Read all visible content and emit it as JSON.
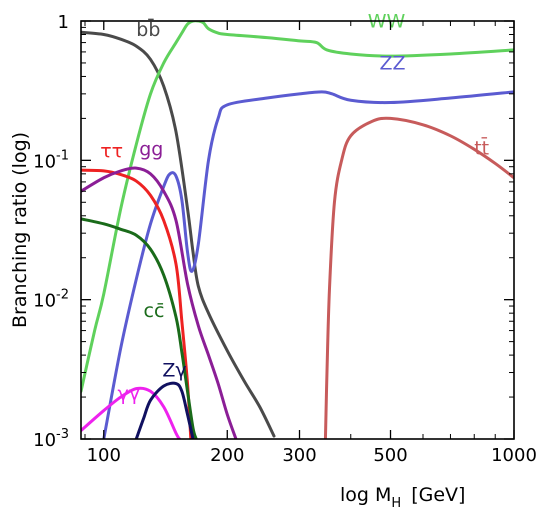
{
  "chart_data": {
    "type": "line",
    "xlabel": "log M",
    "xlabel_sub": "H",
    "xlabel_unit": "[GeV]",
    "ylabel": "Branching ratio  (log)",
    "x_scale": "log",
    "y_scale": "log",
    "xlim": [
      88,
      1000
    ],
    "ylim": [
      0.001,
      1
    ],
    "x_ticks": [
      {
        "value": 100,
        "label": "100"
      },
      {
        "value": 200,
        "label": "200"
      },
      {
        "value": 300,
        "label": "300"
      },
      {
        "value": 500,
        "label": "500"
      },
      {
        "value": 1000,
        "label": "1000"
      }
    ],
    "y_ticks": [
      {
        "value": 1,
        "base": "1",
        "exp": ""
      },
      {
        "value": 0.1,
        "base": "10",
        "exp": "-1"
      },
      {
        "value": 0.01,
        "base": "10",
        "exp": "-2"
      },
      {
        "value": 0.001,
        "base": "10",
        "exp": "-3"
      }
    ],
    "grid": false,
    "legend": "inline labels",
    "series": [
      {
        "name": "bb̄",
        "color": "#4a4a4a",
        "label_at": [
          120,
          0.78
        ],
        "points": [
          [
            88,
            0.83
          ],
          [
            100,
            0.8
          ],
          [
            110,
            0.74
          ],
          [
            120,
            0.66
          ],
          [
            130,
            0.53
          ],
          [
            140,
            0.34
          ],
          [
            150,
            0.16
          ],
          [
            160,
            0.045
          ],
          [
            165,
            0.022
          ],
          [
            170,
            0.0125
          ],
          [
            180,
            0.008
          ],
          [
            200,
            0.0043
          ],
          [
            220,
            0.0026
          ],
          [
            240,
            0.0017
          ],
          [
            260,
            0.00105
          ]
        ]
      },
      {
        "name": "WW",
        "color": "#5fd15c",
        "label_at": [
          440,
          0.9
        ],
        "points": [
          [
            88,
            0.0022
          ],
          [
            95,
            0.006
          ],
          [
            100,
            0.011
          ],
          [
            110,
            0.045
          ],
          [
            120,
            0.13
          ],
          [
            130,
            0.3
          ],
          [
            140,
            0.5
          ],
          [
            150,
            0.7
          ],
          [
            155,
            0.82
          ],
          [
            160,
            0.95
          ],
          [
            165,
            1.0
          ],
          [
            170,
            1.0
          ],
          [
            175,
            0.97
          ],
          [
            180,
            0.88
          ],
          [
            190,
            0.82
          ],
          [
            200,
            0.8
          ],
          [
            250,
            0.76
          ],
          [
            300,
            0.72
          ],
          [
            330,
            0.7
          ],
          [
            350,
            0.62
          ],
          [
            400,
            0.58
          ],
          [
            500,
            0.56
          ],
          [
            700,
            0.58
          ],
          [
            1000,
            0.62
          ]
        ]
      },
      {
        "name": "ZZ",
        "color": "#5b5bd1",
        "label_at": [
          470,
          0.45
        ],
        "points": [
          [
            100,
            0.001
          ],
          [
            110,
            0.0045
          ],
          [
            120,
            0.014
          ],
          [
            130,
            0.035
          ],
          [
            140,
            0.065
          ],
          [
            145,
            0.08
          ],
          [
            150,
            0.077
          ],
          [
            155,
            0.052
          ],
          [
            160,
            0.022
          ],
          [
            164,
            0.016
          ],
          [
            170,
            0.025
          ],
          [
            180,
            0.1
          ],
          [
            190,
            0.2
          ],
          [
            200,
            0.25
          ],
          [
            250,
            0.28
          ],
          [
            300,
            0.3
          ],
          [
            340,
            0.31
          ],
          [
            360,
            0.3
          ],
          [
            400,
            0.27
          ],
          [
            500,
            0.26
          ],
          [
            700,
            0.28
          ],
          [
            1000,
            0.31
          ]
        ]
      },
      {
        "name": "tt̄",
        "color": "#c75b5b",
        "label_at": [
          800,
          0.11
        ],
        "points": [
          [
            347,
            0.001
          ],
          [
            350,
            0.003
          ],
          [
            355,
            0.012
          ],
          [
            365,
            0.05
          ],
          [
            380,
            0.1
          ],
          [
            400,
            0.15
          ],
          [
            450,
            0.19
          ],
          [
            500,
            0.2
          ],
          [
            600,
            0.18
          ],
          [
            700,
            0.15
          ],
          [
            800,
            0.12
          ],
          [
            900,
            0.095
          ],
          [
            1000,
            0.075
          ]
        ]
      },
      {
        "name": "ττ",
        "color": "#ee2222",
        "label_at": [
          98,
          0.105
        ],
        "points": [
          [
            88,
            0.085
          ],
          [
            100,
            0.084
          ],
          [
            110,
            0.079
          ],
          [
            120,
            0.071
          ],
          [
            130,
            0.056
          ],
          [
            140,
            0.037
          ],
          [
            150,
            0.018
          ],
          [
            155,
            0.007
          ],
          [
            160,
            0.0025
          ],
          [
            163,
            0.001
          ]
        ]
      },
      {
        "name": "gg",
        "color": "#8b1e96",
        "label_at": [
          122,
          0.108
        ],
        "points": [
          [
            88,
            0.06
          ],
          [
            100,
            0.075
          ],
          [
            110,
            0.084
          ],
          [
            120,
            0.088
          ],
          [
            130,
            0.08
          ],
          [
            140,
            0.06
          ],
          [
            150,
            0.037
          ],
          [
            160,
            0.013
          ],
          [
            170,
            0.0065
          ],
          [
            180,
            0.004
          ],
          [
            190,
            0.0025
          ],
          [
            200,
            0.0015
          ],
          [
            210,
            0.001
          ]
        ]
      },
      {
        "name": "cc̄",
        "color": "#1a6b1a",
        "label_at": [
          125,
          0.0075
        ],
        "points": [
          [
            88,
            0.038
          ],
          [
            100,
            0.035
          ],
          [
            110,
            0.032
          ],
          [
            120,
            0.029
          ],
          [
            130,
            0.023
          ],
          [
            140,
            0.015
          ],
          [
            150,
            0.0075
          ],
          [
            155,
            0.0042
          ],
          [
            160,
            0.0022
          ],
          [
            165,
            0.0012
          ],
          [
            168,
            0.001
          ]
        ]
      },
      {
        "name": "γγ",
        "color": "#ee22ee",
        "label_at": [
          108,
          0.0019
        ],
        "points": [
          [
            88,
            0.00115
          ],
          [
            100,
            0.0016
          ],
          [
            110,
            0.002
          ],
          [
            120,
            0.0023
          ],
          [
            130,
            0.0022
          ],
          [
            140,
            0.0017
          ],
          [
            150,
            0.0011
          ],
          [
            153,
            0.001
          ]
        ]
      },
      {
        "name": "Zγ",
        "color": "#101060",
        "label_at": [
          139,
          0.0028
        ],
        "points": [
          [
            120,
            0.001
          ],
          [
            125,
            0.0014
          ],
          [
            130,
            0.0019
          ],
          [
            140,
            0.0024
          ],
          [
            150,
            0.0025
          ],
          [
            155,
            0.0022
          ],
          [
            160,
            0.0015
          ],
          [
            165,
            0.001
          ]
        ]
      }
    ]
  }
}
